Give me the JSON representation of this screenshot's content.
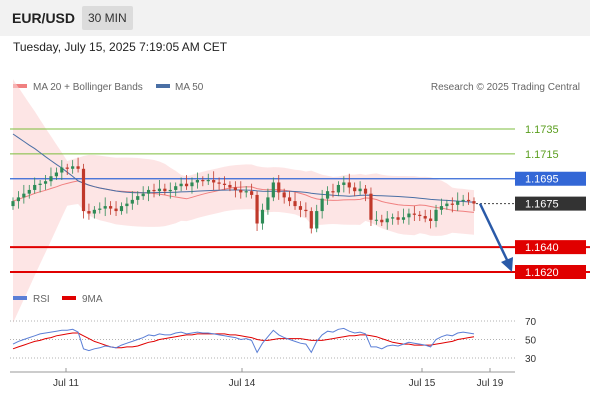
{
  "header": {
    "symbol": "EUR/USD",
    "interval": "30 MIN"
  },
  "timestamp": "Tuesday, July 15, 2025 7:19:05 AM CET",
  "legend": {
    "ma": "MA 20 + Bollinger Bands",
    "ma50": "MA 50",
    "research": "Research © 2025 Trading Central"
  },
  "rsi_legend": {
    "rsi": "RSI",
    "ma9": "9MA"
  },
  "colors": {
    "support": "#e00000",
    "resistance": "#7dbd3c",
    "pivot": "#3367d6",
    "up": "#2e8b57",
    "down": "#c0392b",
    "ma20": "#f08080",
    "ma50": "#4a6fa5",
    "rsi": "#5b7fd6",
    "rsi_ma": "#e00000",
    "arrow": "#2a5aa8"
  },
  "chart_data": [
    {
      "type": "candlestick",
      "title": "EUR/USD 30 MIN",
      "xlabel": "",
      "ylabel": "",
      "x_ticks": [
        "Jul 11",
        "Jul 14",
        "Jul 15",
        "Jul 19"
      ],
      "ylim": [
        1.1608,
        1.1762
      ],
      "levels": [
        {
          "label": "1.1735",
          "value": 1.1735,
          "kind": "resistance"
        },
        {
          "label": "1.1715",
          "value": 1.1715,
          "kind": "resistance"
        },
        {
          "label": "1.1695",
          "value": 1.1695,
          "kind": "pivot"
        },
        {
          "label": "1.1675",
          "value": 1.1675,
          "kind": "last"
        },
        {
          "label": "1.1640",
          "value": 1.164,
          "kind": "support"
        },
        {
          "label": "1.1620",
          "value": 1.162,
          "kind": "support"
        }
      ],
      "close": [
        1.1677,
        1.168,
        1.1683,
        1.1686,
        1.169,
        1.1691,
        1.1693,
        1.1697,
        1.17,
        1.1704,
        1.1703,
        1.1705,
        1.1703,
        1.1669,
        1.1667,
        1.167,
        1.1671,
        1.1673,
        1.1671,
        1.1669,
        1.1673,
        1.1675,
        1.1678,
        1.1681,
        1.1683,
        1.1686,
        1.1685,
        1.1687,
        1.1685,
        1.1686,
        1.1689,
        1.1691,
        1.1689,
        1.1692,
        1.1694,
        1.1693,
        1.1694,
        1.1692,
        1.1691,
        1.169,
        1.1688,
        1.1686,
        1.1684,
        1.1685,
        1.1682,
        1.1659,
        1.167,
        1.168,
        1.1692,
        1.1684,
        1.168,
        1.1677,
        1.1673,
        1.167,
        1.1669,
        1.1655,
        1.1669,
        1.1679,
        1.1685,
        1.1684,
        1.169,
        1.1692,
        1.1688,
        1.1685,
        1.1687,
        1.1683,
        1.1662,
        1.1662,
        1.166,
        1.1663,
        1.1664,
        1.1662,
        1.1664,
        1.1667,
        1.1666,
        1.1665,
        1.1663,
        1.1661,
        1.167,
        1.1673,
        1.1675,
        1.1674,
        1.1677,
        1.1678,
        1.1677,
        1.1675
      ],
      "rsi": {
        "ylim": [
          20,
          80
        ],
        "ticks": [
          70,
          50,
          30
        ],
        "rsi": [
          45,
          48,
          50,
          52,
          54,
          56,
          57,
          58,
          59,
          60,
          60,
          61,
          58,
          40,
          38,
          40,
          41,
          43,
          42,
          41,
          44,
          46,
          48,
          50,
          52,
          55,
          54,
          56,
          55,
          55,
          57,
          58,
          56,
          57,
          58,
          57,
          57,
          56,
          55,
          54,
          53,
          52,
          50,
          51,
          49,
          36,
          46,
          53,
          60,
          55,
          52,
          50,
          48,
          46,
          45,
          36,
          48,
          55,
          59,
          58,
          61,
          62,
          59,
          57,
          58,
          56,
          42,
          42,
          40,
          43,
          44,
          43,
          45,
          47,
          46,
          45,
          44,
          42,
          50,
          53,
          55,
          54,
          57,
          58,
          57,
          56
        ],
        "ma9": [
          40,
          42,
          44,
          46,
          48,
          49,
          51,
          52,
          54,
          55,
          56,
          57,
          57,
          54,
          51,
          48,
          46,
          44,
          42,
          41,
          41,
          42,
          42,
          43,
          45,
          47,
          48,
          50,
          51,
          52,
          53,
          54,
          55,
          55,
          56,
          56,
          56,
          56,
          56,
          56,
          55,
          55,
          54,
          53,
          52,
          50,
          49,
          49,
          50,
          51,
          51,
          51,
          51,
          51,
          50,
          49,
          49,
          49,
          50,
          51,
          52,
          53,
          54,
          54,
          55,
          55,
          54,
          53,
          51,
          49,
          47,
          46,
          45,
          45,
          44,
          44,
          44,
          44,
          45,
          46,
          47,
          48,
          50,
          51,
          52,
          53
        ]
      }
    }
  ]
}
